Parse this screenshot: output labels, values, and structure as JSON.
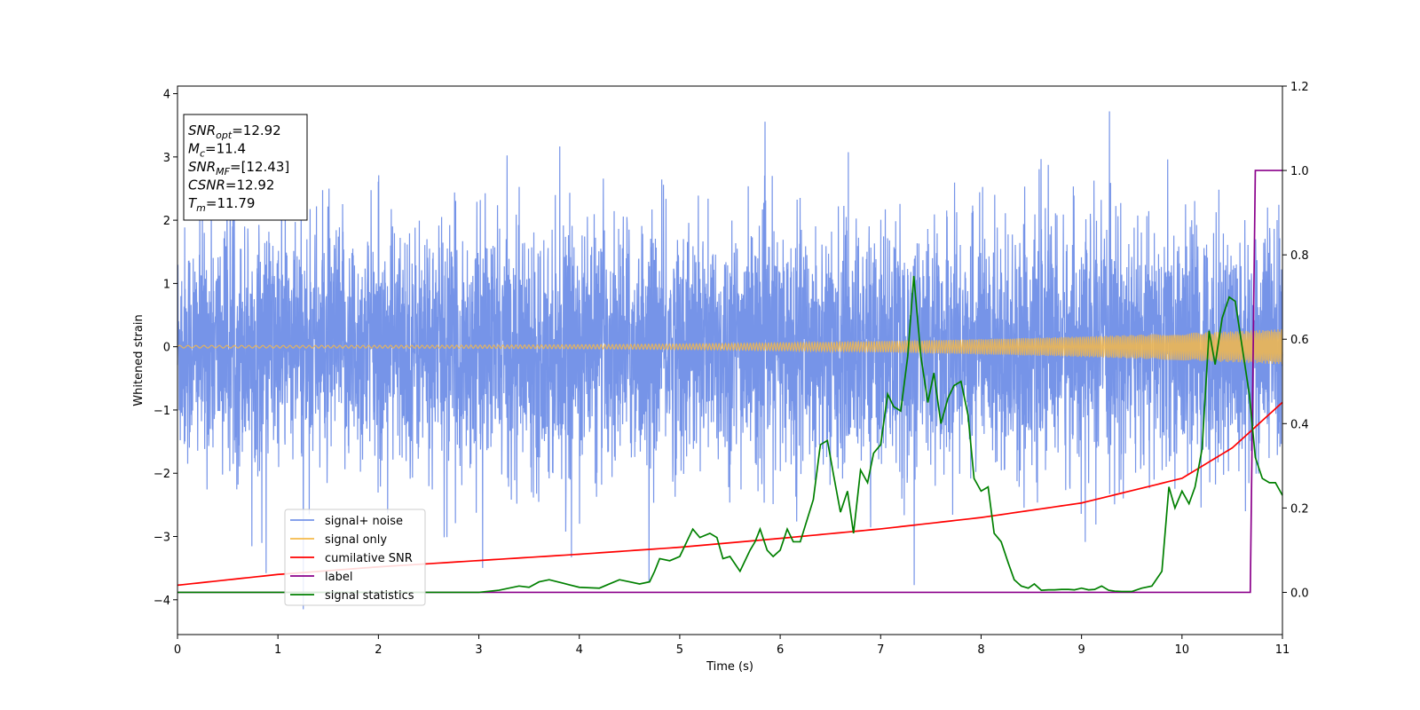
{
  "chart_data": {
    "type": "line",
    "xlabel": "Time (s)",
    "ylabel": "Whitened strain",
    "xlim": [
      0,
      11
    ],
    "ylim": [
      -4.55,
      4.12
    ],
    "y2lim": [
      -0.1,
      1.2
    ],
    "x_ticks": [
      0,
      1,
      2,
      3,
      4,
      5,
      6,
      7,
      8,
      9,
      10,
      11
    ],
    "y_ticks": [
      4,
      3,
      2,
      1,
      0,
      -1,
      -2,
      -3,
      -4
    ],
    "y_tick_labels": [
      "4",
      "3",
      "2",
      "1",
      "0",
      "−1",
      "−2",
      "−3",
      "−4"
    ],
    "y2_ticks": [
      1.2,
      1.0,
      0.8,
      0.6,
      0.4,
      0.2,
      0.0
    ],
    "y2_tick_labels": [
      "1.2",
      "1.0",
      "0.8",
      "0.6",
      "0.4",
      "0.2",
      "0.0"
    ],
    "legend_position": "lower-left",
    "colors": {
      "signal_noise": "#7694e8",
      "signal_only": "#f5b94a",
      "cumulative_snr": "#ff0000",
      "label": "#8b008b",
      "signal_statistics": "#008000"
    },
    "series": [
      {
        "name": "signal+ noise",
        "axis": "left",
        "description_values": "whitened strain noise band approx ±1.5 with spikes to ±3.7",
        "amplitude_typical": 1.5,
        "peak_max": 3.72,
        "peak_min": -4.15
      },
      {
        "name": "signal only",
        "axis": "left",
        "amplitude_start": 0.02,
        "amplitude_end": 0.28
      },
      {
        "name": "cumilative SNR",
        "axis": "left",
        "x": [
          0,
          1,
          2,
          3,
          4,
          5,
          6,
          7,
          8,
          9,
          10,
          10.5,
          11
        ],
        "y": [
          -3.77,
          -3.6,
          -3.48,
          -3.38,
          -3.28,
          -3.17,
          -3.03,
          -2.88,
          -2.7,
          -2.47,
          -2.08,
          -1.6,
          -0.88
        ]
      },
      {
        "name": "label",
        "axis": "right",
        "x": [
          0,
          10.68,
          10.73,
          11
        ],
        "y": [
          0.0,
          0.0,
          1.0,
          1.0
        ]
      },
      {
        "name": "signal statistics",
        "axis": "right",
        "x": [
          0,
          0.5,
          1,
          1.5,
          2,
          2.5,
          3,
          3.2,
          3.4,
          3.5,
          3.6,
          3.7,
          3.9,
          4.0,
          4.2,
          4.3,
          4.4,
          4.5,
          4.6,
          4.7,
          4.75,
          4.8,
          4.9,
          5.0,
          5.07,
          5.13,
          5.2,
          5.3,
          5.37,
          5.43,
          5.5,
          5.6,
          5.7,
          5.75,
          5.8,
          5.87,
          5.93,
          6.0,
          6.07,
          6.13,
          6.2,
          6.33,
          6.4,
          6.47,
          6.53,
          6.6,
          6.67,
          6.73,
          6.8,
          6.87,
          6.93,
          7.0,
          7.07,
          7.13,
          7.2,
          7.27,
          7.33,
          7.4,
          7.47,
          7.53,
          7.6,
          7.67,
          7.73,
          7.8,
          7.87,
          7.93,
          8.0,
          8.07,
          8.13,
          8.2,
          8.27,
          8.33,
          8.4,
          8.47,
          8.53,
          8.6,
          8.67,
          8.73,
          8.8,
          8.87,
          8.93,
          9.0,
          9.07,
          9.13,
          9.2,
          9.27,
          9.33,
          9.4,
          9.5,
          9.6,
          9.7,
          9.8,
          9.87,
          9.93,
          10.0,
          10.07,
          10.13,
          10.2,
          10.27,
          10.33,
          10.4,
          10.47,
          10.53,
          10.6,
          10.67,
          10.73,
          10.8,
          10.87,
          10.93,
          11.0
        ],
        "y": [
          0.0,
          0.0,
          0.0,
          0.0,
          0.0,
          0.0,
          0.0,
          0.005,
          0.015,
          0.012,
          0.025,
          0.03,
          0.018,
          0.012,
          0.01,
          0.02,
          0.03,
          0.025,
          0.02,
          0.025,
          0.05,
          0.08,
          0.075,
          0.085,
          0.12,
          0.15,
          0.13,
          0.14,
          0.13,
          0.08,
          0.085,
          0.05,
          0.1,
          0.12,
          0.15,
          0.1,
          0.085,
          0.1,
          0.15,
          0.12,
          0.12,
          0.22,
          0.35,
          0.36,
          0.28,
          0.19,
          0.24,
          0.14,
          0.29,
          0.26,
          0.33,
          0.35,
          0.47,
          0.44,
          0.43,
          0.56,
          0.75,
          0.56,
          0.45,
          0.52,
          0.4,
          0.46,
          0.49,
          0.5,
          0.42,
          0.27,
          0.24,
          0.25,
          0.14,
          0.12,
          0.07,
          0.03,
          0.015,
          0.01,
          0.02,
          0.005,
          0.006,
          0.006,
          0.007,
          0.007,
          0.006,
          0.01,
          0.006,
          0.007,
          0.015,
          0.005,
          0.003,
          0.002,
          0.002,
          0.01,
          0.015,
          0.05,
          0.25,
          0.2,
          0.24,
          0.21,
          0.25,
          0.34,
          0.62,
          0.54,
          0.65,
          0.7,
          0.69,
          0.58,
          0.47,
          0.32,
          0.27,
          0.26,
          0.26,
          0.23
        ]
      }
    ],
    "annotation": {
      "lines": [
        {
          "base": "SNR",
          "sub": "opt",
          "rest": "=12.92"
        },
        {
          "base": "M",
          "sub": "c",
          "rest": "=11.4"
        },
        {
          "base": "SNR",
          "sub": "MF",
          "rest": "=[12.43]"
        },
        {
          "base": "CSNR",
          "sub": "",
          "rest": "=12.92"
        },
        {
          "base": "T",
          "sub": "m",
          "rest": "=11.79"
        }
      ]
    },
    "legend": [
      {
        "key": "signal_noise",
        "label": "signal+ noise"
      },
      {
        "key": "signal_only",
        "label": "signal only"
      },
      {
        "key": "cumulative_snr",
        "label": "cumilative SNR"
      },
      {
        "key": "label",
        "label": "label"
      },
      {
        "key": "signal_statistics",
        "label": "signal statistics"
      }
    ]
  }
}
